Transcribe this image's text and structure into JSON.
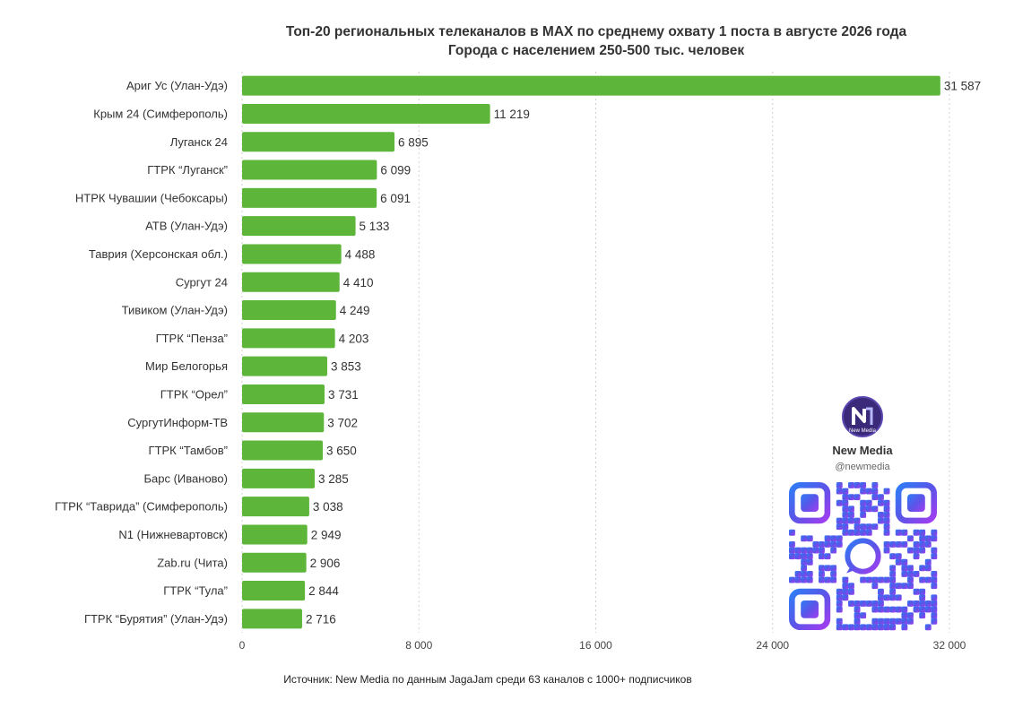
{
  "chart_data": {
    "type": "bar",
    "orientation": "horizontal",
    "title": "Топ-20 региональных телеканалов в MAX по среднему охвату 1 поста в августе 2026 года",
    "subtitle": "Города с населением 250-500 тыс. человек",
    "categories": [
      "Ариг Ус (Улан-Удэ)",
      "Крым 24 (Симферополь)",
      "Луганск 24",
      "ГТРК “Луганск”",
      "НТРК Чувашии (Чебоксары)",
      "АТВ (Улан-Удэ)",
      "Таврия (Херсонская обл.)",
      "Сургут 24",
      "Тивиком (Улан-Удэ)",
      "ГТРК “Пенза”",
      "Мир Белогорья",
      "ГТРК “Орел”",
      "СургутИнформ-ТВ",
      "ГТРК “Тамбов”",
      "Барс (Иваново)",
      "ГТРК “Таврида” (Симферополь)",
      "N1 (Нижневартовск)",
      "Zab.ru (Чита)",
      "ГТРК “Тула”",
      "ГТРК “Бурятия” (Улан-Удэ)"
    ],
    "values": [
      31587,
      11219,
      6895,
      6099,
      6091,
      5133,
      4488,
      4410,
      4249,
      4203,
      3853,
      3731,
      3702,
      3650,
      3285,
      3038,
      2949,
      2906,
      2844,
      2716
    ],
    "value_labels": [
      "31 587",
      "11 219",
      "6 895",
      "6 099",
      "6 091",
      "5 133",
      "4 488",
      "4 410",
      "4 249",
      "4 203",
      "3 853",
      "3 731",
      "3 702",
      "3 650",
      "3 285",
      "3 038",
      "2 949",
      "2 906",
      "2 844",
      "2 716"
    ],
    "xlim": [
      0,
      32000
    ],
    "xticks": [
      0,
      8000,
      16000,
      24000,
      32000
    ],
    "xtick_labels": [
      "0",
      "8 000",
      "16 000",
      "24 000",
      "32 000"
    ],
    "grid": "vertical dotted",
    "bar_color": "#5db53a"
  },
  "source": "Источник: New Media по данным JagaJam среди 63 каналов с 1000+ подписчиков",
  "brand": {
    "name": "New Media",
    "handle": "@newmedia",
    "logo_icon": "new-media-logo-icon",
    "qr_icon": "qr-code-icon"
  }
}
